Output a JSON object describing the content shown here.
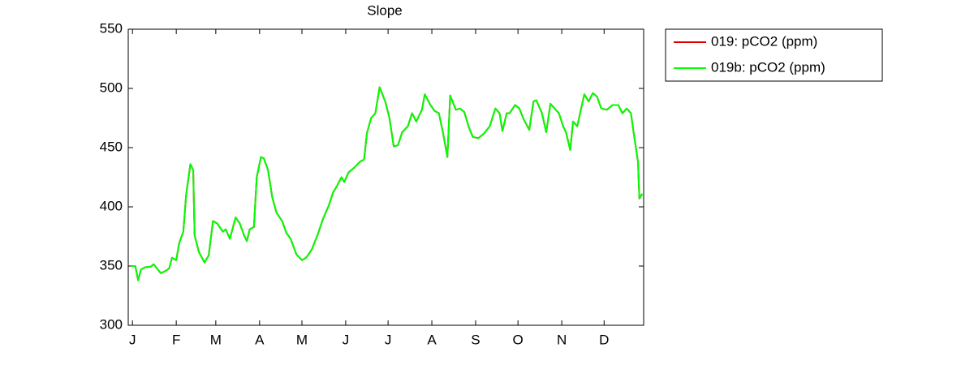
{
  "chart_data": {
    "type": "line",
    "title": "Slope",
    "x": [
      0,
      3,
      5,
      7,
      10,
      14,
      16,
      19,
      21,
      24,
      27,
      29,
      32,
      34,
      37,
      39,
      42,
      44,
      45,
      48,
      52,
      55,
      58,
      61,
      65,
      67,
      70,
      74,
      77,
      80,
      82,
      84,
      87,
      89,
      92,
      94,
      97,
      100,
      103,
      107,
      110,
      113,
      117,
      121,
      124,
      128,
      132,
      136,
      140,
      143,
      146,
      149,
      151,
      154,
      158,
      162,
      165,
      167,
      170,
      173,
      176,
      180,
      183,
      186,
      189,
      192,
      196,
      199,
      202,
      206,
      208,
      212,
      215,
      218,
      221,
      224,
      226,
      230,
      233,
      236,
      239,
      242,
      246,
      250,
      254,
      258,
      261,
      263,
      266,
      268,
      272,
      275,
      278,
      282,
      285,
      287,
      291,
      294,
      297,
      300,
      303,
      306,
      308,
      311,
      313,
      316,
      318,
      321,
      324,
      327,
      330,
      333,
      337,
      341,
      345,
      348,
      351,
      354,
      356,
      359,
      360,
      362
    ],
    "series": [
      {
        "name": "019: pCO2 (ppm)",
        "color": "#e00000",
        "values": [
          350,
          350,
          338,
          347,
          349,
          349.5,
          351.5,
          347,
          344,
          345.6,
          348,
          357,
          355,
          369,
          379,
          410,
          436,
          431,
          376,
          362,
          353,
          359,
          388,
          386,
          379,
          381,
          373,
          391,
          386,
          376,
          371,
          381,
          383,
          425,
          442,
          441,
          431,
          408,
          395,
          388,
          378,
          373,
          360,
          355,
          357,
          364,
          376,
          390,
          401,
          412,
          418,
          425,
          421,
          429,
          433,
          438,
          440,
          462,
          475,
          479,
          501,
          489,
          475,
          451,
          452,
          463,
          468,
          479,
          472,
          482,
          495,
          486,
          481,
          479,
          462,
          442,
          494,
          482,
          483,
          480,
          468,
          459,
          458,
          462,
          468,
          483,
          479,
          464,
          479,
          479,
          486,
          483,
          474,
          465,
          489,
          490,
          479,
          463,
          487,
          483,
          479,
          468,
          463,
          448,
          472,
          468,
          479,
          495,
          489,
          496,
          493,
          483,
          482,
          486,
          486,
          479,
          483,
          479,
          462,
          438,
          407,
          411
        ]
      },
      {
        "name": "019b: pCO2 (ppm)",
        "color": "#00ff00",
        "values": [
          350,
          350,
          338,
          347,
          349,
          349.5,
          351.5,
          347,
          344,
          345.6,
          348,
          357,
          355,
          369,
          379,
          410,
          436,
          431,
          376,
          362,
          353,
          359,
          388,
          386,
          379,
          381,
          373,
          391,
          386,
          376,
          371,
          381,
          383,
          425,
          442,
          441,
          431,
          408,
          395,
          388,
          378,
          373,
          360,
          355,
          357,
          364,
          376,
          390,
          401,
          412,
          418,
          425,
          421,
          429,
          433,
          438,
          440,
          462,
          475,
          479,
          501,
          489,
          475,
          451,
          452,
          463,
          468,
          479,
          472,
          482,
          495,
          486,
          481,
          479,
          462,
          442,
          494,
          482,
          483,
          480,
          468,
          459,
          458,
          462,
          468,
          483,
          479,
          464,
          479,
          479,
          486,
          483,
          474,
          465,
          489,
          490,
          479,
          463,
          487,
          483,
          479,
          468,
          463,
          448,
          472,
          468,
          479,
          495,
          489,
          496,
          493,
          483,
          482,
          486,
          486,
          479,
          483,
          479,
          462,
          438,
          407,
          411
        ]
      }
    ],
    "xlim": [
      -2,
      363
    ],
    "xticks": [
      {
        "value": 1,
        "label": "J"
      },
      {
        "value": 32,
        "label": "F"
      },
      {
        "value": 60,
        "label": "M"
      },
      {
        "value": 91,
        "label": "A"
      },
      {
        "value": 121,
        "label": "M"
      },
      {
        "value": 152,
        "label": "J"
      },
      {
        "value": 182,
        "label": "J"
      },
      {
        "value": 213,
        "label": "A"
      },
      {
        "value": 244,
        "label": "S"
      },
      {
        "value": 274,
        "label": "O"
      },
      {
        "value": 305,
        "label": "N"
      },
      {
        "value": 335,
        "label": "D"
      }
    ],
    "ylim": [
      300,
      550
    ],
    "yticks": [
      300,
      350,
      400,
      450,
      500,
      550
    ],
    "grid": false,
    "legend": "outside-right"
  }
}
